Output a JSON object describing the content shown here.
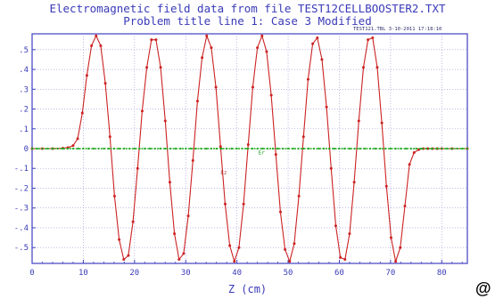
{
  "chart_data": {
    "type": "line",
    "title": "Electromagnetic field data from file TEST12CELLBOOSTER2.TXT",
    "subtitle": "Problem title line 1: Case 3 Modified",
    "stamp": "TEST121.TBL    3-10-2011  17:18:10",
    "xlabel": "Z (cm)",
    "ylabel": "",
    "xlim": [
      0,
      85
    ],
    "ylim": [
      -0.58,
      0.58
    ],
    "xticks": [
      0,
      10,
      20,
      30,
      40,
      50,
      60,
      70,
      80
    ],
    "yticks": [
      0.5,
      0.4,
      0.3,
      0.2,
      0.1,
      0,
      -0.1,
      -0.2,
      -0.3,
      -0.4,
      -0.5
    ],
    "ytick_labels": [
      ".5",
      ".4",
      ".3",
      ".2",
      ".1",
      "0",
      "-.1",
      "-.2",
      "-.3",
      "-.4",
      "-.5"
    ],
    "grid": true,
    "annotations": [
      {
        "text": "Ez",
        "x": 36.8,
        "y": -0.13,
        "color": "#b04040"
      },
      {
        "text": "Er",
        "x": 44.2,
        "y": -0.03,
        "color": "#20a020"
      }
    ],
    "series": [
      {
        "name": "Ez",
        "color": "#cc2222",
        "x": [
          0,
          2,
          4,
          6,
          7,
          8,
          8.9,
          9.8,
          10.7,
          11.6,
          12.5,
          13.4,
          14.3,
          15.2,
          16.1,
          17.0,
          17.9,
          18.8,
          19.7,
          20.6,
          21.5,
          22.4,
          23.3,
          24.2,
          25.1,
          26.0,
          26.9,
          27.8,
          28.7,
          29.6,
          30.5,
          31.4,
          32.3,
          33.2,
          34.1,
          35.0,
          35.9,
          36.8,
          37.7,
          38.6,
          39.5,
          40.4,
          41.3,
          42.2,
          43.1,
          44.0,
          44.9,
          45.8,
          46.7,
          47.6,
          48.5,
          49.4,
          50.3,
          51.2,
          52.1,
          53.0,
          53.9,
          54.8,
          55.7,
          56.6,
          57.5,
          58.4,
          59.3,
          60.2,
          61.1,
          62.0,
          62.9,
          63.8,
          64.7,
          65.6,
          66.5,
          67.4,
          68.3,
          69.2,
          70.1,
          71.0,
          71.9,
          72.8,
          73.7,
          74.6,
          75.5,
          76.4,
          77.3,
          78.2,
          79.1,
          80,
          82,
          85
        ],
        "y": [
          0.0,
          0.0,
          0.0,
          0.002,
          0.005,
          0.015,
          0.05,
          0.18,
          0.37,
          0.52,
          0.57,
          0.52,
          0.33,
          0.06,
          -0.24,
          -0.46,
          -0.56,
          -0.54,
          -0.37,
          -0.1,
          0.19,
          0.41,
          0.55,
          0.55,
          0.41,
          0.14,
          -0.17,
          -0.43,
          -0.56,
          -0.53,
          -0.34,
          -0.06,
          0.24,
          0.46,
          0.57,
          0.51,
          0.31,
          0.01,
          -0.28,
          -0.49,
          -0.57,
          -0.5,
          -0.28,
          0.02,
          0.31,
          0.51,
          0.57,
          0.49,
          0.27,
          -0.03,
          -0.32,
          -0.51,
          -0.57,
          -0.48,
          -0.24,
          0.06,
          0.35,
          0.53,
          0.56,
          0.45,
          0.21,
          -0.1,
          -0.39,
          -0.55,
          -0.56,
          -0.43,
          -0.17,
          0.14,
          0.41,
          0.55,
          0.56,
          0.41,
          0.13,
          -0.19,
          -0.45,
          -0.57,
          -0.5,
          -0.29,
          -0.08,
          -0.02,
          -0.005,
          0.0,
          0.0,
          0.0,
          0.0,
          0.0,
          0.0,
          0.0
        ]
      },
      {
        "name": "Er",
        "color": "#22aa22",
        "x": [
          0,
          1,
          2,
          3,
          4,
          5,
          6,
          7,
          8,
          9,
          10,
          11,
          12,
          13,
          14,
          15,
          16,
          17,
          18,
          19,
          20,
          21,
          22,
          23,
          24,
          25,
          26,
          27,
          28,
          29,
          30,
          31,
          32,
          33,
          34,
          35,
          36,
          37,
          38,
          39,
          40,
          41,
          42,
          43,
          44,
          45,
          46,
          47,
          48,
          49,
          50,
          51,
          52,
          53,
          54,
          55,
          56,
          57,
          58,
          59,
          60,
          61,
          62,
          63,
          64,
          65,
          66,
          67,
          68,
          69,
          70,
          71,
          72,
          73,
          74,
          75,
          76,
          77,
          78,
          79,
          80,
          81,
          82,
          83,
          84,
          85
        ],
        "y": [
          0,
          0,
          0,
          0,
          0,
          0,
          0,
          0,
          0,
          0,
          0,
          0,
          0,
          0,
          0,
          0,
          0,
          0,
          0,
          0,
          0,
          0,
          0,
          0,
          0,
          0,
          0,
          0,
          0,
          0,
          0,
          0,
          0,
          0,
          0,
          0,
          0,
          0,
          0,
          0,
          0,
          0,
          0,
          0,
          0,
          0,
          0,
          0,
          0,
          0,
          0,
          0,
          0,
          0,
          0,
          0,
          0,
          0,
          0,
          0,
          0,
          0,
          0,
          0,
          0,
          0,
          0,
          0,
          0,
          0,
          0,
          0,
          0,
          0,
          0,
          0,
          0,
          0,
          0,
          0,
          0,
          0,
          0,
          0,
          0,
          0
        ]
      }
    ]
  },
  "footer_mark": "@"
}
